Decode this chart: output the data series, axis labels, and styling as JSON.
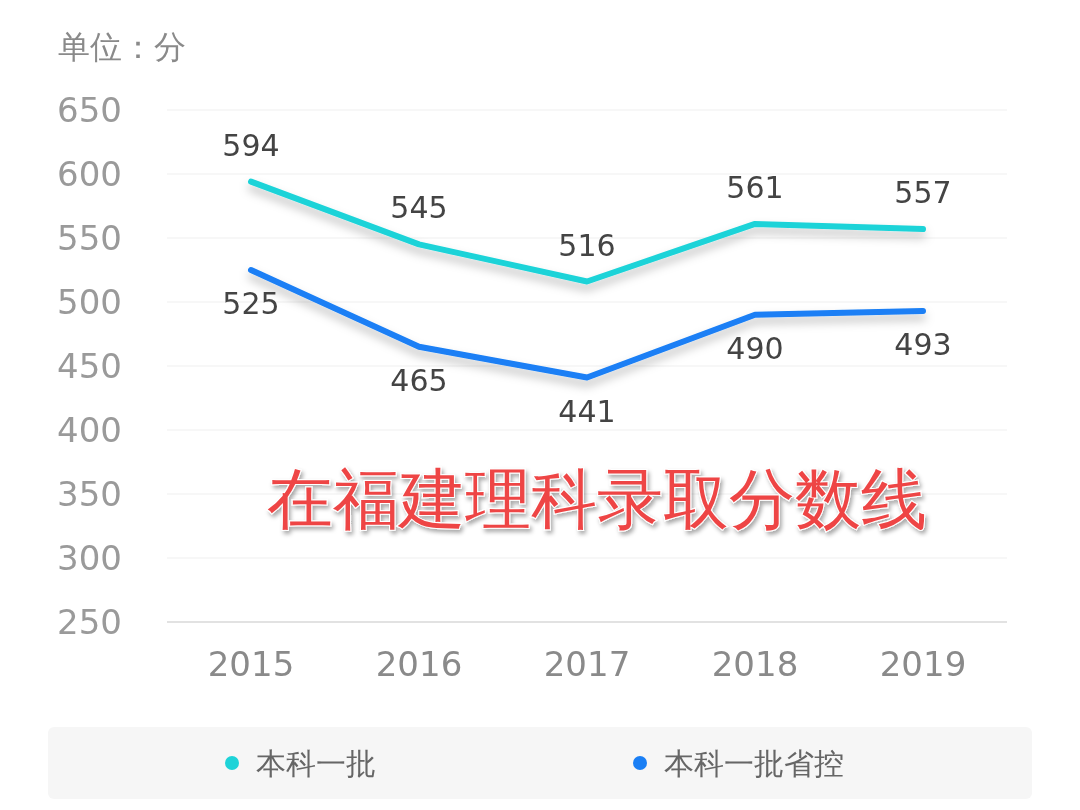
{
  "chart_data": {
    "type": "line",
    "ylabel": "单位：分",
    "categories": [
      "2015",
      "2016",
      "2017",
      "2018",
      "2019"
    ],
    "series": [
      {
        "name": "本科一批",
        "color": "#1ed3d8",
        "values": [
          594,
          545,
          516,
          561,
          557
        ]
      },
      {
        "name": "本科一批省控",
        "color": "#1a7ff5",
        "values": [
          525,
          465,
          441,
          490,
          493
        ]
      }
    ],
    "ylim": [
      250,
      650
    ],
    "yticks": [
      250,
      300,
      350,
      400,
      450,
      500,
      550,
      600,
      650
    ],
    "grid": "y",
    "data_labels": true,
    "legend": "bottom",
    "marker": "none",
    "annotations": [
      "在福建理科录取分数线"
    ]
  }
}
